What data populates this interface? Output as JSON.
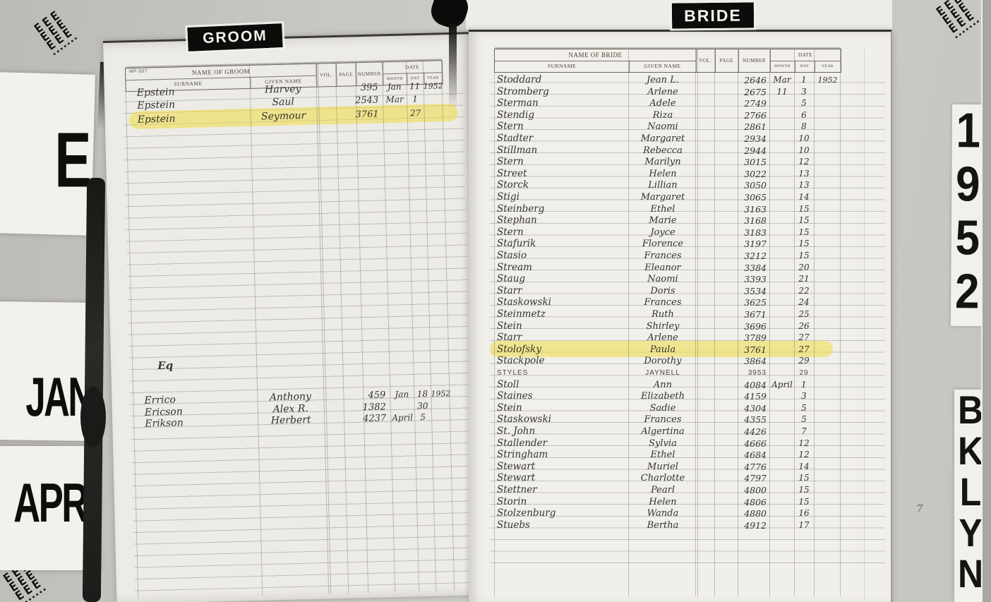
{
  "film": {
    "mark_rows": [
      "EEE",
      "EEE",
      "EEE"
    ],
    "dots": "▪▪▪▪▪▪▪"
  },
  "tabs": {
    "letter": "E",
    "months": [
      "JAN",
      "APR"
    ],
    "year_vertical": "1952",
    "borough_vertical": "BKLYN"
  },
  "highlight_color": "rgba(238,220,70,0.55)",
  "annotations": {
    "stray_mark": "7"
  },
  "groom_page": {
    "tab_label": "GROOM",
    "form_code": "MP-557",
    "header": {
      "name_of": "NAME OF GROOM",
      "surname": "SURNAME",
      "given_name": "GIVEN NAME",
      "vol": "VOL.",
      "page": "PAGE",
      "number": "NUMBER",
      "date": "DATE",
      "month": "MONTH",
      "day": "DAY",
      "year": "YEAR"
    },
    "section_label": "Eq",
    "entries_ep": [
      {
        "surname": "Epstein",
        "given": "Harvey",
        "vol": "",
        "page": "",
        "number": "395",
        "month": "Jan",
        "day": "11",
        "year": "1952",
        "highlight": false
      },
      {
        "surname": "Epstein",
        "given": "Saul",
        "vol": "",
        "page": "",
        "number": "2543",
        "month": "Mar",
        "day": "1",
        "year": "",
        "highlight": false
      },
      {
        "surname": "Epstein",
        "given": "Seymour",
        "vol": "",
        "page": "",
        "number": "3761",
        "month": "",
        "day": "27",
        "year": "",
        "highlight": true
      }
    ],
    "entries_er": [
      {
        "surname": "Errico",
        "given": "Anthony",
        "vol": "",
        "page": "",
        "number": "459",
        "month": "Jan",
        "day": "18",
        "year": "1952",
        "highlight": false
      },
      {
        "surname": "Ericson",
        "given": "Alex R.",
        "vol": "",
        "page": "",
        "number": "1382",
        "month": "",
        "day": "30",
        "year": "",
        "highlight": false
      },
      {
        "surname": "Erikson",
        "given": "Herbert",
        "vol": "",
        "page": "",
        "number": "4237",
        "month": "April",
        "day": "5",
        "year": "",
        "highlight": false
      }
    ]
  },
  "bride_page": {
    "tab_label": "BRIDE",
    "header": {
      "name_of": "NAME OF BRIDE",
      "surname": "SURNAME",
      "given_name": "GIVEN NAME",
      "vol": "VOL.",
      "page": "PAGE",
      "number": "NUMBER",
      "date": "DATE",
      "month": "MONTH",
      "day": "DAY",
      "year": "YEAR"
    },
    "entries": [
      {
        "surname": "Stoddard",
        "given": "Jean L.",
        "number": "2646",
        "month": "Mar",
        "day": "1",
        "year": "1952",
        "highlight": false
      },
      {
        "surname": "Stromberg",
        "given": "Arlene",
        "number": "2675",
        "month": "11",
        "day": "3",
        "year": "",
        "highlight": false
      },
      {
        "surname": "Sterman",
        "given": "Adele",
        "number": "2749",
        "month": "",
        "day": "5",
        "year": "",
        "highlight": false
      },
      {
        "surname": "Stendig",
        "given": "Riza",
        "number": "2766",
        "month": "",
        "day": "6",
        "year": "",
        "highlight": false
      },
      {
        "surname": "Stern",
        "given": "Naomi",
        "number": "2861",
        "month": "",
        "day": "8",
        "year": "",
        "highlight": false
      },
      {
        "surname": "Stadter",
        "given": "Margaret",
        "number": "2934",
        "month": "",
        "day": "10",
        "year": "",
        "highlight": false
      },
      {
        "surname": "Stillman",
        "given": "Rebecca",
        "number": "2944",
        "month": "",
        "day": "10",
        "year": "",
        "highlight": false
      },
      {
        "surname": "Stern",
        "given": "Marilyn",
        "number": "3015",
        "month": "",
        "day": "12",
        "year": "",
        "highlight": false
      },
      {
        "surname": "Street",
        "given": "Helen",
        "number": "3022",
        "month": "",
        "day": "13",
        "year": "",
        "highlight": false
      },
      {
        "surname": "Storck",
        "given": "Lillian",
        "number": "3050",
        "month": "",
        "day": "13",
        "year": "",
        "highlight": false
      },
      {
        "surname": "Stigi",
        "given": "Margaret",
        "number": "3065",
        "month": "",
        "day": "14",
        "year": "",
        "highlight": false
      },
      {
        "surname": "Steinberg",
        "given": "Ethel",
        "number": "3163",
        "month": "",
        "day": "15",
        "year": "",
        "highlight": false
      },
      {
        "surname": "Stephan",
        "given": "Marie",
        "number": "3168",
        "month": "",
        "day": "15",
        "year": "",
        "highlight": false
      },
      {
        "surname": "Stern",
        "given": "Joyce",
        "number": "3183",
        "month": "",
        "day": "15",
        "year": "",
        "highlight": false
      },
      {
        "surname": "Stafurik",
        "given": "Florence",
        "number": "3197",
        "month": "",
        "day": "15",
        "year": "",
        "highlight": false
      },
      {
        "surname": "Stasio",
        "given": "Frances",
        "number": "3212",
        "month": "",
        "day": "15",
        "year": "",
        "highlight": false
      },
      {
        "surname": "Stream",
        "given": "Eleanor",
        "number": "3384",
        "month": "",
        "day": "20",
        "year": "",
        "highlight": false
      },
      {
        "surname": "Staug",
        "given": "Naomi",
        "number": "3393",
        "month": "",
        "day": "21",
        "year": "",
        "highlight": false
      },
      {
        "surname": "Starr",
        "given": "Doris",
        "number": "3534",
        "month": "",
        "day": "22",
        "year": "",
        "highlight": false
      },
      {
        "surname": "Staskowski",
        "given": "Frances",
        "number": "3625",
        "month": "",
        "day": "24",
        "year": "",
        "highlight": false
      },
      {
        "surname": "Steinmetz",
        "given": "Ruth",
        "number": "3671",
        "month": "",
        "day": "25",
        "year": "",
        "highlight": false
      },
      {
        "surname": "Stein",
        "given": "Shirley",
        "number": "3696",
        "month": "",
        "day": "26",
        "year": "",
        "highlight": false
      },
      {
        "surname": "Starr",
        "given": "Arlene",
        "number": "3789",
        "month": "",
        "day": "27",
        "year": "",
        "highlight": false
      },
      {
        "surname": "Stolofsky",
        "given": "Paula",
        "number": "3761",
        "month": "",
        "day": "27",
        "year": "",
        "highlight": true
      },
      {
        "surname": "Stackpole",
        "given": "Dorothy",
        "number": "3864",
        "month": "",
        "day": "29",
        "year": "",
        "highlight": false
      },
      {
        "surname": "STYLES",
        "given": "JAYNELL",
        "number": "3953",
        "month": "",
        "day": "29",
        "year": "",
        "highlight": false,
        "print": true
      },
      {
        "surname": "Stoll",
        "given": "Ann",
        "number": "4084",
        "month": "April",
        "day": "1",
        "year": "",
        "highlight": false
      },
      {
        "surname": "Staines",
        "given": "Elizabeth",
        "number": "4159",
        "month": "",
        "day": "3",
        "year": "",
        "highlight": false
      },
      {
        "surname": "Stein",
        "given": "Sadie",
        "number": "4304",
        "month": "",
        "day": "5",
        "year": "",
        "highlight": false
      },
      {
        "surname": "Staskowski",
        "given": "Frances",
        "number": "4355",
        "month": "",
        "day": "5",
        "year": "",
        "highlight": false
      },
      {
        "surname": "St. John",
        "given": "Algertina",
        "number": "4426",
        "month": "",
        "day": "7",
        "year": "",
        "highlight": false
      },
      {
        "surname": "Stallender",
        "given": "Sylvia",
        "number": "4666",
        "month": "",
        "day": "12",
        "year": "",
        "highlight": false
      },
      {
        "surname": "Stringham",
        "given": "Ethel",
        "number": "4684",
        "month": "",
        "day": "12",
        "year": "",
        "highlight": false
      },
      {
        "surname": "Stewart",
        "given": "Muriel",
        "number": "4776",
        "month": "",
        "day": "14",
        "year": "",
        "highlight": false
      },
      {
        "surname": "Stewart",
        "given": "Charlotte",
        "number": "4797",
        "month": "",
        "day": "15",
        "year": "",
        "highlight": false
      },
      {
        "surname": "Stettner",
        "given": "Pearl",
        "number": "4800",
        "month": "",
        "day": "15",
        "year": "",
        "highlight": false
      },
      {
        "surname": "Storin",
        "given": "Helen",
        "number": "4806",
        "month": "",
        "day": "15",
        "year": "",
        "highlight": false
      },
      {
        "surname": "Stolzenburg",
        "given": "Wanda",
        "number": "4880",
        "month": "",
        "day": "16",
        "year": "",
        "highlight": false
      },
      {
        "surname": "Stuebs",
        "given": "Bertha",
        "number": "4912",
        "month": "",
        "day": "17",
        "year": "",
        "highlight": false
      }
    ]
  }
}
